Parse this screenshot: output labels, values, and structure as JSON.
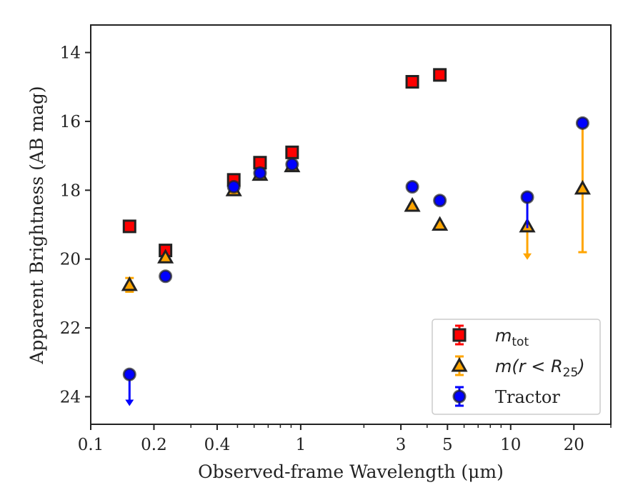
{
  "chart_data": {
    "type": "scatter",
    "xlabel": "Observed-frame Wavelength (μm)",
    "ylabel": "Apparent Brightness (AB mag)",
    "x_scale": "log",
    "xlim": [
      0.1,
      30
    ],
    "ylim": [
      24.8,
      13.2
    ],
    "y_inverted": true,
    "x_ticks": [
      0.1,
      0.2,
      0.4,
      1,
      3,
      5,
      10,
      20
    ],
    "x_tick_labels": [
      "0.1",
      "0.2",
      "0.4",
      "1",
      "3",
      "5",
      "10",
      "20"
    ],
    "y_ticks": [
      14,
      16,
      18,
      20,
      22,
      24
    ],
    "y_tick_labels": [
      "14",
      "16",
      "18",
      "20",
      "22",
      "24"
    ],
    "grid": false,
    "legend_position": "lower-right",
    "colors": {
      "m_tot": "#ff0000",
      "m_r25": "#ffa500",
      "tractor": "#0000ff",
      "edge": "#222222"
    },
    "series": [
      {
        "name": "m_tot",
        "legend_label": "m_tot",
        "marker": "square",
        "points": [
          {
            "x": 0.153,
            "y": 19.05
          },
          {
            "x": 0.227,
            "y": 19.75
          },
          {
            "x": 0.48,
            "y": 17.7
          },
          {
            "x": 0.64,
            "y": 17.2
          },
          {
            "x": 0.91,
            "y": 16.9
          },
          {
            "x": 3.4,
            "y": 14.85
          },
          {
            "x": 4.6,
            "y": 14.65
          }
        ]
      },
      {
        "name": "m(r<R25)",
        "legend_label": "m(r<R25)",
        "marker": "triangle",
        "points": [
          {
            "x": 0.153,
            "y": 20.75,
            "yerr": 0.2
          },
          {
            "x": 0.227,
            "y": 19.95
          },
          {
            "x": 0.48,
            "y": 18.0
          },
          {
            "x": 0.64,
            "y": 17.55
          },
          {
            "x": 0.91,
            "y": 17.3
          },
          {
            "x": 3.4,
            "y": 18.45
          },
          {
            "x": 4.6,
            "y": 19.0
          },
          {
            "x": 12.0,
            "y": 19.05,
            "upper_limit_to": 20.0
          },
          {
            "x": 22.0,
            "y": 17.95,
            "err_low": 16.0,
            "err_high": 19.8
          }
        ]
      },
      {
        "name": "Tractor",
        "legend_label": "Tractor",
        "marker": "circle",
        "points": [
          {
            "x": 0.153,
            "y": 23.35,
            "upper_limit_to": 24.25
          },
          {
            "x": 0.227,
            "y": 20.5
          },
          {
            "x": 0.48,
            "y": 17.9
          },
          {
            "x": 0.64,
            "y": 17.5
          },
          {
            "x": 0.91,
            "y": 17.25
          },
          {
            "x": 3.4,
            "y": 17.9
          },
          {
            "x": 4.6,
            "y": 18.3
          },
          {
            "x": 12.0,
            "y": 18.2,
            "err_high": 19.1
          },
          {
            "x": 22.0,
            "y": 16.05
          }
        ]
      }
    ],
    "legend": [
      {
        "series": "m_tot",
        "text": "m",
        "sub": "tot",
        "italic_prefix": true
      },
      {
        "series": "m(r<R25)",
        "text": "m(r < R",
        "sub": "25",
        "suffix": ")",
        "italic_prefix": true
      },
      {
        "series": "Tractor",
        "text": "Tractor",
        "sub": "",
        "italic_prefix": false
      }
    ]
  }
}
